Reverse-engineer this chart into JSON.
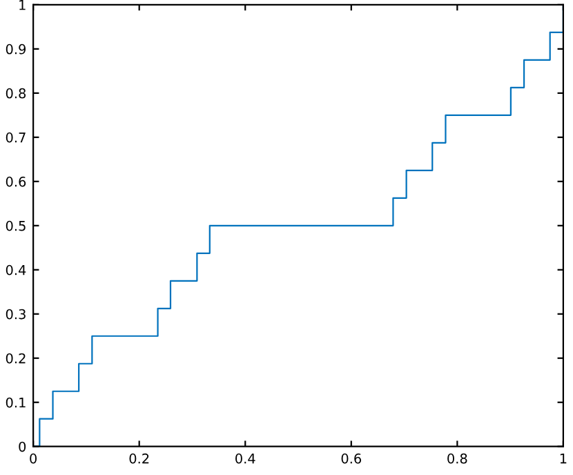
{
  "chart_data": {
    "type": "step",
    "x": [
      0,
      0.012,
      0.037,
      0.086,
      0.111,
      0.235,
      0.259,
      0.309,
      0.333,
      0.679,
      0.704,
      0.753,
      0.778,
      0.901,
      0.926,
      0.975,
      1
    ],
    "series": [
      {
        "color": "#0072bd",
        "values": [
          0,
          0.0625,
          0.125,
          0.1875,
          0.25,
          0.3125,
          0.375,
          0.4375,
          0.5,
          0.5625,
          0.625,
          0.6875,
          0.75,
          0.8125,
          0.875,
          0.9375,
          1
        ]
      }
    ],
    "xlim": [
      0,
      1
    ],
    "ylim": [
      0,
      1
    ],
    "xticks": [
      0,
      0.2,
      0.4,
      0.6,
      0.8,
      1
    ],
    "yticks": [
      0,
      0.1,
      0.2,
      0.3,
      0.4,
      0.5,
      0.6,
      0.7,
      0.8,
      0.9,
      1
    ],
    "grid": false,
    "legend": false
  }
}
